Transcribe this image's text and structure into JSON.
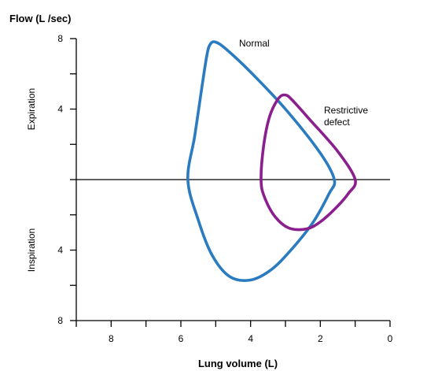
{
  "chart_data": {
    "type": "line",
    "title": "",
    "ylabel": "Flow (L /sec)",
    "xlabel": "Lung volume (L)",
    "xlim": [
      0,
      9
    ],
    "x_reversed": true,
    "ylim": [
      -8,
      8
    ],
    "x_tick_labels": [
      "8",
      "6",
      "4",
      "2",
      "0"
    ],
    "y_tick_labels_top": [
      "8",
      "4"
    ],
    "y_tick_labels_bottom": [
      "4",
      "8"
    ],
    "y_region_labels": {
      "upper": "Expiration",
      "lower": "Inspiration"
    },
    "grid": false,
    "colors": {
      "normal": "#2a7bbf",
      "restrictive": "#8b1f8e",
      "axis": "#000000"
    },
    "series": [
      {
        "name": "Normal",
        "color": "#2a7bbf",
        "points": [
          [
            5.8,
            0
          ],
          [
            5.6,
            2.5
          ],
          [
            5.4,
            5.2
          ],
          [
            5.25,
            7.1
          ],
          [
            5.15,
            7.7
          ],
          [
            5.0,
            7.8
          ],
          [
            4.7,
            7.4
          ],
          [
            4.0,
            6.1
          ],
          [
            3.0,
            4.0
          ],
          [
            2.0,
            1.5
          ],
          [
            1.6,
            0
          ],
          [
            1.75,
            -0.8
          ],
          [
            2.2,
            -2.4
          ],
          [
            2.8,
            -3.9
          ],
          [
            3.4,
            -5.1
          ],
          [
            4.0,
            -5.7
          ],
          [
            4.6,
            -5.5
          ],
          [
            5.1,
            -4.3
          ],
          [
            5.5,
            -2.3
          ],
          [
            5.8,
            0
          ]
        ]
      },
      {
        "name": "Restrictive defect",
        "label_lines": [
          "Restrictive",
          "defect"
        ],
        "color": "#8b1f8e",
        "points": [
          [
            3.7,
            0
          ],
          [
            3.62,
            2.0
          ],
          [
            3.45,
            3.6
          ],
          [
            3.2,
            4.6
          ],
          [
            3.0,
            4.8
          ],
          [
            2.8,
            4.5
          ],
          [
            2.3,
            3.4
          ],
          [
            1.5,
            1.6
          ],
          [
            1.0,
            0
          ],
          [
            1.2,
            -0.8
          ],
          [
            1.55,
            -1.6
          ],
          [
            2.0,
            -2.4
          ],
          [
            2.4,
            -2.8
          ],
          [
            2.9,
            -2.75
          ],
          [
            3.3,
            -2.1
          ],
          [
            3.6,
            -1.0
          ],
          [
            3.7,
            0
          ]
        ]
      }
    ]
  }
}
